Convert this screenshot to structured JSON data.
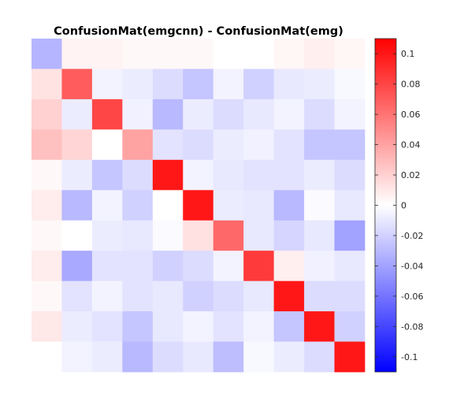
{
  "chart_data": {
    "type": "heatmap",
    "title": "ConfusionMat(emgcnn) - ConfusionMat(emg)",
    "xlabel": "",
    "ylabel": "",
    "rows": 11,
    "cols": 11,
    "values": [
      [
        -0.032,
        0.005,
        0.005,
        0.003,
        0.003,
        0.003,
        0.0,
        0.0,
        0.004,
        0.007,
        0.004
      ],
      [
        0.012,
        0.07,
        -0.005,
        -0.008,
        -0.015,
        -0.025,
        -0.005,
        -0.02,
        -0.01,
        -0.008,
        -0.003
      ],
      [
        0.02,
        -0.008,
        0.08,
        -0.006,
        -0.03,
        -0.008,
        -0.015,
        -0.01,
        -0.005,
        -0.015,
        -0.005
      ],
      [
        0.027,
        0.018,
        0.0,
        0.04,
        -0.012,
        -0.015,
        -0.008,
        -0.006,
        -0.012,
        -0.025,
        -0.025
      ],
      [
        0.003,
        -0.008,
        -0.025,
        -0.015,
        0.1,
        -0.005,
        -0.01,
        -0.012,
        -0.012,
        -0.008,
        -0.015
      ],
      [
        0.008,
        -0.03,
        -0.005,
        -0.02,
        0.0,
        0.1,
        -0.008,
        -0.01,
        -0.03,
        -0.002,
        -0.01
      ],
      [
        0.003,
        0.0,
        -0.008,
        -0.01,
        -0.002,
        0.013,
        0.065,
        -0.01,
        -0.018,
        -0.01,
        -0.04
      ],
      [
        0.008,
        -0.037,
        -0.012,
        -0.012,
        -0.02,
        -0.015,
        -0.005,
        0.085,
        0.007,
        -0.006,
        -0.01
      ],
      [
        0.003,
        -0.012,
        -0.005,
        -0.012,
        -0.01,
        -0.02,
        -0.015,
        -0.01,
        0.1,
        -0.015,
        -0.015
      ],
      [
        0.01,
        -0.008,
        -0.012,
        -0.025,
        -0.01,
        -0.005,
        -0.012,
        -0.005,
        -0.025,
        0.1,
        -0.02
      ],
      [
        null,
        -0.005,
        -0.008,
        -0.03,
        -0.015,
        -0.01,
        -0.028,
        -0.003,
        -0.008,
        -0.015,
        0.1
      ]
    ],
    "color_range": [
      -0.11,
      0.11
    ],
    "colormap": {
      "negative": "#0000ff",
      "zero": "#ffffff",
      "positive": "#ff0000"
    },
    "colorbar": {
      "ticks": [
        0.1,
        0.08,
        0.06,
        0.04,
        0.02,
        0,
        -0.02,
        -0.04,
        -0.06,
        -0.08,
        -0.1
      ],
      "tick_labels": [
        "0.1",
        "0.08",
        "0.06",
        "0.04",
        "0.02",
        "0",
        "-0.02",
        "-0.04",
        "-0.06",
        "-0.08",
        "-0.1"
      ],
      "placement": "right"
    },
    "grid": false
  }
}
